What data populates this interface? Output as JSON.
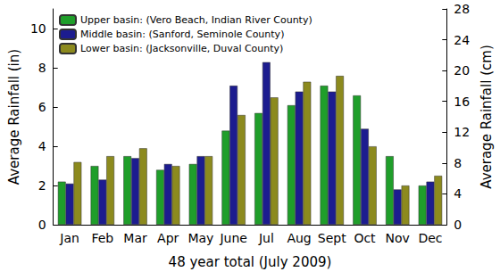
{
  "chart_data": {
    "type": "bar",
    "categories": [
      "Jan",
      "Feb",
      "Mar",
      "Apr",
      "May",
      "June",
      "Jul",
      "Aug",
      "Sept",
      "Oct",
      "Nov",
      "Dec"
    ],
    "series": [
      {
        "name": "Upper basin: (Vero Beach, Indian River County)",
        "color": "#1f9e2a",
        "values": [
          2.2,
          3.0,
          3.5,
          2.8,
          3.1,
          4.8,
          5.7,
          6.1,
          7.1,
          6.6,
          3.5,
          2.0
        ]
      },
      {
        "name": "Middle basin: (Sanford, Seminole County)",
        "color": "#1c1c8f",
        "values": [
          2.1,
          2.3,
          3.4,
          3.1,
          3.5,
          7.1,
          8.3,
          6.8,
          6.8,
          4.9,
          1.8,
          2.2
        ]
      },
      {
        "name": "Lower basin: (Jacksonville, Duval County)",
        "color": "#8c8a1e",
        "values": [
          3.2,
          3.5,
          3.9,
          3.0,
          3.5,
          5.6,
          6.5,
          7.3,
          7.6,
          4.0,
          2.0,
          2.5
        ]
      }
    ],
    "xlabel": "48 year total (July 2009)",
    "ylabel": "Average Rainfall (in)",
    "y2label": "Average Rainfall (cm)",
    "ylim": [
      0,
      11.02
    ],
    "yticks": [
      0,
      2,
      4,
      6,
      8,
      10
    ],
    "y2lim": [
      0,
      28
    ],
    "y2ticks": [
      0,
      4,
      8,
      12,
      16,
      20,
      24,
      28
    ],
    "legend": "upper left",
    "grid": false
  }
}
